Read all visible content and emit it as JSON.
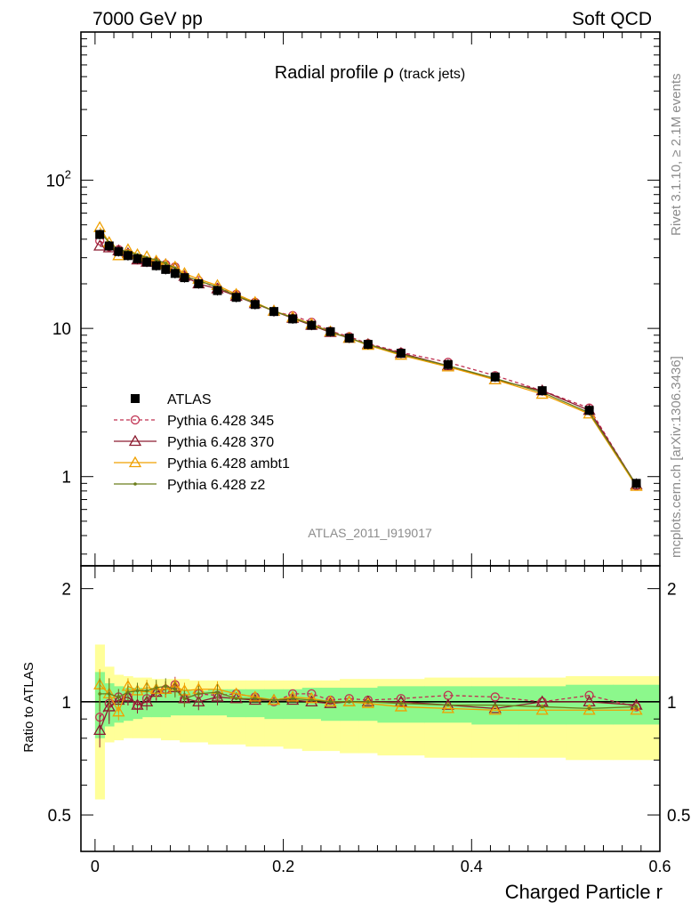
{
  "header": {
    "left": "7000 GeV pp",
    "right": "Soft QCD"
  },
  "side": {
    "rivet": "Rivet 3.1.10, ≥ 2.1M events",
    "mcplots": "mcplots.cern.ch [arXiv:1306.3436]"
  },
  "chart_data": {
    "type": "line",
    "title": "Radial profile",
    "title_symbol": "ρ",
    "title_suffix": "(track jets)",
    "analysis_id": "ATLAS_2011_I919017",
    "xlabel": "Charged Particle r",
    "ylabel_ratio": "Ratio to ATLAS",
    "xlim": [
      -0.015,
      0.6
    ],
    "ylim_main": [
      0.25,
      1000
    ],
    "ylim_ratio": [
      0.4,
      2.3
    ],
    "log_scale_main": true,
    "log_scale_ratio": true,
    "xticks": [
      "0",
      "0.2",
      "0.4",
      "0.6"
    ],
    "yticks_main": [
      "1",
      "10",
      "10^2"
    ],
    "yticks_ratio": [
      "0.5",
      "1",
      "2"
    ],
    "legend_placement": "lower-left",
    "x": [
      0.005,
      0.015,
      0.025,
      0.035,
      0.045,
      0.055,
      0.065,
      0.075,
      0.085,
      0.095,
      0.11,
      0.13,
      0.15,
      0.17,
      0.19,
      0.21,
      0.23,
      0.25,
      0.27,
      0.29,
      0.325,
      0.375,
      0.425,
      0.475,
      0.525,
      0.575
    ],
    "x_edges": [
      0,
      0.01,
      0.02,
      0.03,
      0.04,
      0.05,
      0.06,
      0.07,
      0.08,
      0.09,
      0.1,
      0.12,
      0.14,
      0.16,
      0.18,
      0.2,
      0.22,
      0.24,
      0.26,
      0.28,
      0.3,
      0.35,
      0.4,
      0.45,
      0.5,
      0.55,
      0.6
    ],
    "ratio_band_inner_low": [
      0.8,
      0.86,
      0.88,
      0.89,
      0.9,
      0.91,
      0.91,
      0.91,
      0.92,
      0.92,
      0.92,
      0.92,
      0.91,
      0.91,
      0.9,
      0.9,
      0.9,
      0.89,
      0.89,
      0.89,
      0.88,
      0.88,
      0.87,
      0.87,
      0.87,
      0.87
    ],
    "ratio_band_inner_high": [
      1.2,
      1.12,
      1.1,
      1.09,
      1.09,
      1.08,
      1.08,
      1.08,
      1.08,
      1.08,
      1.07,
      1.08,
      1.08,
      1.08,
      1.08,
      1.08,
      1.09,
      1.09,
      1.09,
      1.09,
      1.1,
      1.1,
      1.1,
      1.1,
      1.11,
      1.11
    ],
    "ratio_band_outer_low": [
      0.55,
      0.78,
      0.79,
      0.8,
      0.8,
      0.8,
      0.8,
      0.79,
      0.79,
      0.78,
      0.78,
      0.77,
      0.77,
      0.76,
      0.76,
      0.75,
      0.74,
      0.74,
      0.73,
      0.73,
      0.72,
      0.71,
      0.71,
      0.71,
      0.7,
      0.7
    ],
    "ratio_band_outer_high": [
      1.42,
      1.24,
      1.18,
      1.17,
      1.16,
      1.16,
      1.15,
      1.15,
      1.15,
      1.15,
      1.14,
      1.14,
      1.14,
      1.14,
      1.14,
      1.14,
      1.14,
      1.14,
      1.15,
      1.15,
      1.15,
      1.16,
      1.16,
      1.16,
      1.17,
      1.17
    ],
    "series": [
      {
        "name": "ATLAS",
        "color": "#000000",
        "marker": "square",
        "values": [
          43,
          36,
          33,
          31,
          29.5,
          28,
          26.5,
          25,
          23.5,
          22,
          20,
          18,
          16.2,
          14.5,
          13,
          11.6,
          10.5,
          9.5,
          8.6,
          7.8,
          6.8,
          5.7,
          4.7,
          3.8,
          2.8,
          0.9
        ]
      },
      {
        "name": "Pythia 6.428 345",
        "color": "#c03050",
        "marker": "circle",
        "dashed": true,
        "values": [
          39,
          35.5,
          34,
          32,
          29,
          28.5,
          28,
          27,
          26,
          22.5,
          21,
          18.8,
          17,
          15,
          13,
          12.2,
          11,
          9.6,
          8.8,
          7.9,
          6.9,
          5.9,
          4.8,
          3.8,
          2.9,
          0.87
        ],
        "ratio": [
          0.91,
          0.99,
          1.03,
          1.03,
          0.98,
          1.02,
          1.06,
          1.08,
          1.11,
          1.02,
          1.05,
          1.04,
          1.05,
          1.03,
          1.0,
          1.05,
          1.05,
          1.01,
          1.02,
          1.01,
          1.02,
          1.04,
          1.03,
          1.0,
          1.04,
          0.97
        ]
      },
      {
        "name": "Pythia 6.428 370",
        "color": "#8c1c30",
        "marker": "triangle",
        "values": [
          36,
          35,
          33.5,
          32,
          29,
          28,
          28,
          27,
          25.5,
          22.5,
          20,
          18.5,
          16.5,
          14.7,
          13.1,
          11.7,
          10.5,
          9.4,
          8.6,
          7.8,
          6.8,
          5.6,
          4.5,
          3.8,
          2.8,
          0.88
        ],
        "ratio": [
          0.84,
          0.97,
          1.01,
          1.03,
          0.98,
          1.0,
          1.06,
          1.08,
          1.09,
          1.02,
          1.0,
          1.03,
          1.02,
          1.01,
          1.01,
          1.01,
          1.0,
          0.99,
          1.0,
          1.0,
          1.0,
          0.98,
          0.96,
          1.0,
          1.0,
          0.98
        ]
      },
      {
        "name": "Pythia 6.428 ambt1",
        "color": "#f0a000",
        "marker": "triangle",
        "values": [
          48,
          38,
          31,
          34,
          31.5,
          30.5,
          28.5,
          27,
          26,
          23.5,
          21.5,
          19.5,
          17,
          15,
          13.1,
          11.9,
          10.7,
          9.5,
          8.6,
          7.7,
          6.6,
          5.5,
          4.5,
          3.6,
          2.65,
          0.86
        ],
        "ratio": [
          1.11,
          1.05,
          0.94,
          1.1,
          1.07,
          1.09,
          1.08,
          1.08,
          1.1,
          1.07,
          1.08,
          1.08,
          1.05,
          1.03,
          1.01,
          1.03,
          1.02,
          1.0,
          1.0,
          0.99,
          0.97,
          0.96,
          0.95,
          0.95,
          0.95,
          0.95
        ]
      },
      {
        "name": "Pythia 6.428 z2",
        "color": "#6b7d1a",
        "marker": "dot",
        "values": [
          45,
          38,
          34,
          33,
          31.5,
          30,
          29,
          27.5,
          25.5,
          22.5,
          21,
          19,
          16.6,
          14.8,
          13.1,
          11.8,
          10.6,
          9.5,
          8.6,
          7.8,
          6.7,
          5.6,
          4.6,
          3.7,
          2.7,
          0.88
        ],
        "ratio": [
          1.05,
          1.05,
          1.03,
          1.06,
          1.07,
          1.07,
          1.09,
          1.1,
          1.08,
          1.02,
          1.05,
          1.06,
          1.02,
          1.02,
          1.01,
          1.02,
          1.01,
          1.0,
          1.0,
          1.0,
          0.99,
          0.98,
          0.98,
          0.97,
          0.96,
          0.97
        ]
      }
    ]
  }
}
